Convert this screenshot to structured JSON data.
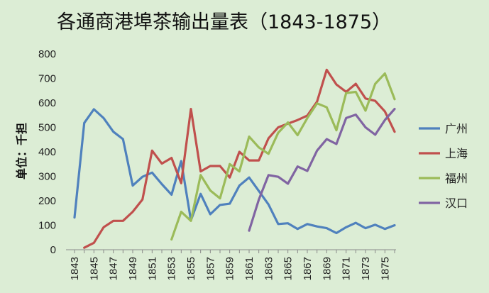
{
  "chart_data": {
    "type": "line",
    "title": "各通商港埠茶输出量表（1843-1875）",
    "ylabel": "单位：千担",
    "xlabel": "",
    "ylim": [
      0,
      800
    ],
    "yticks": [
      0,
      100,
      200,
      300,
      400,
      500,
      600,
      700,
      800
    ],
    "xlim": [
      1843,
      1876
    ],
    "xticks": [
      1843,
      1845,
      1847,
      1849,
      1851,
      1853,
      1855,
      1857,
      1859,
      1861,
      1863,
      1865,
      1867,
      1869,
      1871,
      1873,
      1875
    ],
    "grid": false,
    "legend_position": "right",
    "series": [
      {
        "name": "广州",
        "color": "#4f81bd",
        "points": [
          [
            1843,
            132
          ],
          [
            1844,
            518
          ],
          [
            1845,
            574
          ],
          [
            1846,
            538
          ],
          [
            1847,
            482
          ],
          [
            1848,
            452
          ],
          [
            1849,
            262
          ],
          [
            1850,
            298
          ],
          [
            1851,
            315
          ],
          [
            1852,
            268
          ],
          [
            1853,
            225
          ],
          [
            1854,
            362
          ],
          [
            1855,
            120
          ],
          [
            1856,
            228
          ],
          [
            1857,
            145
          ],
          [
            1858,
            183
          ],
          [
            1859,
            188
          ],
          [
            1860,
            262
          ],
          [
            1861,
            295
          ],
          [
            1862,
            240
          ],
          [
            1863,
            185
          ],
          [
            1864,
            105
          ],
          [
            1865,
            108
          ],
          [
            1866,
            85
          ],
          [
            1867,
            105
          ],
          [
            1868,
            95
          ],
          [
            1869,
            88
          ],
          [
            1870,
            68
          ],
          [
            1871,
            92
          ],
          [
            1872,
            110
          ],
          [
            1873,
            88
          ],
          [
            1874,
            102
          ],
          [
            1875,
            85
          ],
          [
            1876,
            100
          ]
        ]
      },
      {
        "name": "上海",
        "color": "#c0504d",
        "points": [
          [
            1844,
            8
          ],
          [
            1845,
            28
          ],
          [
            1846,
            92
          ],
          [
            1847,
            118
          ],
          [
            1848,
            118
          ],
          [
            1849,
            155
          ],
          [
            1850,
            205
          ],
          [
            1851,
            405
          ],
          [
            1852,
            352
          ],
          [
            1853,
            375
          ],
          [
            1854,
            272
          ],
          [
            1855,
            575
          ],
          [
            1856,
            320
          ],
          [
            1857,
            342
          ],
          [
            1858,
            342
          ],
          [
            1859,
            295
          ],
          [
            1860,
            400
          ],
          [
            1861,
            365
          ],
          [
            1862,
            365
          ],
          [
            1863,
            455
          ],
          [
            1864,
            500
          ],
          [
            1865,
            515
          ],
          [
            1866,
            530
          ],
          [
            1867,
            548
          ],
          [
            1868,
            605
          ],
          [
            1869,
            735
          ],
          [
            1870,
            675
          ],
          [
            1871,
            645
          ],
          [
            1872,
            678
          ],
          [
            1873,
            618
          ],
          [
            1874,
            608
          ],
          [
            1875,
            565
          ],
          [
            1876,
            482
          ]
        ]
      },
      {
        "name": "福州",
        "color": "#9bbb59",
        "points": [
          [
            1853,
            42
          ],
          [
            1854,
            155
          ],
          [
            1855,
            118
          ],
          [
            1856,
            305
          ],
          [
            1857,
            242
          ],
          [
            1858,
            210
          ],
          [
            1859,
            350
          ],
          [
            1860,
            320
          ],
          [
            1861,
            462
          ],
          [
            1862,
            418
          ],
          [
            1863,
            392
          ],
          [
            1864,
            478
          ],
          [
            1865,
            520
          ],
          [
            1866,
            468
          ],
          [
            1867,
            538
          ],
          [
            1868,
            598
          ],
          [
            1869,
            582
          ],
          [
            1870,
            488
          ],
          [
            1871,
            640
          ],
          [
            1872,
            645
          ],
          [
            1873,
            568
          ],
          [
            1874,
            678
          ],
          [
            1875,
            720
          ],
          [
            1876,
            615
          ]
        ]
      },
      {
        "name": "汉口",
        "color": "#8064a2",
        "points": [
          [
            1861,
            78
          ],
          [
            1862,
            205
          ],
          [
            1863,
            305
          ],
          [
            1864,
            298
          ],
          [
            1865,
            270
          ],
          [
            1866,
            340
          ],
          [
            1867,
            322
          ],
          [
            1868,
            405
          ],
          [
            1869,
            452
          ],
          [
            1870,
            432
          ],
          [
            1871,
            538
          ],
          [
            1872,
            552
          ],
          [
            1873,
            500
          ],
          [
            1874,
            470
          ],
          [
            1875,
            530
          ],
          [
            1876,
            575
          ]
        ]
      }
    ]
  }
}
